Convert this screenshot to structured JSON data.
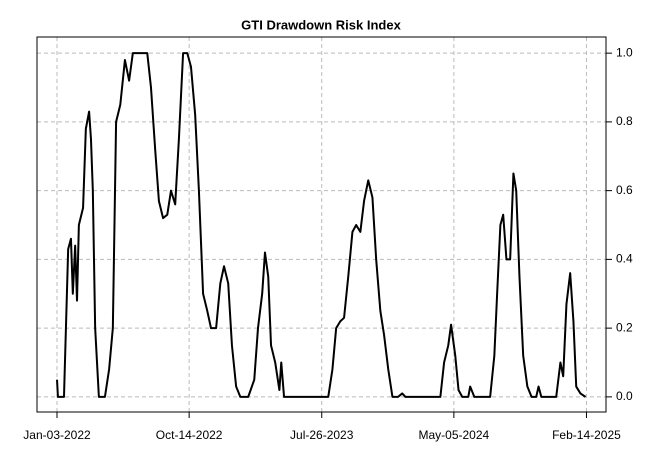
{
  "chart_data": {
    "type": "line",
    "title": "GTI Drawdown Risk Index",
    "color": "#000000",
    "grid": true,
    "y_axis_side": "right",
    "x": [
      "2022-01-03",
      "2022-01-05",
      "2022-01-18",
      "2022-01-27",
      "2022-02-02",
      "2022-02-06",
      "2022-02-11",
      "2022-02-15",
      "2022-02-19",
      "2022-02-28",
      "2022-03-06",
      "2022-03-13",
      "2022-03-17",
      "2022-03-21",
      "2022-03-26",
      "2022-04-03",
      "2022-04-16",
      "2022-04-25",
      "2022-05-03",
      "2022-05-10",
      "2022-05-19",
      "2022-05-29",
      "2022-06-07",
      "2022-06-15",
      "2022-07-16",
      "2022-07-24",
      "2022-08-02",
      "2022-08-10",
      "2022-08-19",
      "2022-08-28",
      "2022-09-05",
      "2022-09-14",
      "2022-09-22",
      "2022-10-01",
      "2022-10-10",
      "2022-10-18",
      "2022-10-27",
      "2022-11-04",
      "2022-11-13",
      "2022-11-22",
      "2022-11-30",
      "2022-12-11",
      "2022-12-20",
      "2022-12-28",
      "2023-01-06",
      "2023-01-14",
      "2023-01-23",
      "2023-02-01",
      "2023-02-18",
      "2023-03-03",
      "2023-03-11",
      "2023-03-20",
      "2023-03-26",
      "2023-04-02",
      "2023-04-08",
      "2023-04-17",
      "2023-04-26",
      "2023-04-30",
      "2023-05-06",
      "2023-05-17",
      "2023-08-09",
      "2023-08-18",
      "2023-08-26",
      "2023-09-04",
      "2023-09-12",
      "2023-09-21",
      "2023-09-30",
      "2023-10-08",
      "2023-10-17",
      "2023-10-25",
      "2023-11-03",
      "2023-11-12",
      "2023-11-20",
      "2023-11-29",
      "2023-12-07",
      "2023-12-16",
      "2023-12-25",
      "2024-01-06",
      "2024-01-15",
      "2024-01-22",
      "2024-04-06",
      "2024-04-14",
      "2024-04-23",
      "2024-04-29",
      "2024-05-08",
      "2024-05-15",
      "2024-05-23",
      "2024-06-05",
      "2024-06-09",
      "2024-06-18",
      "2024-07-22",
      "2024-07-31",
      "2024-08-06",
      "2024-08-13",
      "2024-08-19",
      "2024-08-26",
      "2024-09-03",
      "2024-09-10",
      "2024-09-16",
      "2024-09-23",
      "2024-10-01",
      "2024-10-10",
      "2024-10-19",
      "2024-10-29",
      "2024-11-03",
      "2024-11-09",
      "2024-12-11",
      "2024-12-20",
      "2024-12-26",
      "2025-01-02",
      "2025-01-10",
      "2025-01-17",
      "2025-01-23",
      "2025-02-01",
      "2025-02-12"
    ],
    "values": [
      0.05,
      0.0,
      0.0,
      0.43,
      0.46,
      0.3,
      0.44,
      0.28,
      0.5,
      0.55,
      0.78,
      0.83,
      0.75,
      0.6,
      0.2,
      0.0,
      0.0,
      0.08,
      0.2,
      0.8,
      0.85,
      0.98,
      0.92,
      1.0,
      1.0,
      0.9,
      0.72,
      0.57,
      0.52,
      0.53,
      0.6,
      0.56,
      0.75,
      1.0,
      1.0,
      0.96,
      0.82,
      0.6,
      0.3,
      0.25,
      0.2,
      0.2,
      0.33,
      0.38,
      0.33,
      0.15,
      0.03,
      0.0,
      0.0,
      0.05,
      0.2,
      0.3,
      0.42,
      0.35,
      0.15,
      0.1,
      0.02,
      0.1,
      0.0,
      0.0,
      0.0,
      0.08,
      0.2,
      0.22,
      0.23,
      0.35,
      0.48,
      0.5,
      0.48,
      0.57,
      0.63,
      0.58,
      0.4,
      0.25,
      0.18,
      0.08,
      0.0,
      0.0,
      0.01,
      0.0,
      0.0,
      0.1,
      0.15,
      0.21,
      0.12,
      0.02,
      0.0,
      0.0,
      0.03,
      0.0,
      0.0,
      0.12,
      0.3,
      0.5,
      0.53,
      0.4,
      0.4,
      0.65,
      0.6,
      0.35,
      0.12,
      0.03,
      0.0,
      0.0,
      0.03,
      0.0,
      0.0,
      0.1,
      0.06,
      0.27,
      0.36,
      0.22,
      0.03,
      0.01,
      0.0
    ],
    "xlim": [
      "2021-11-21",
      "2025-03-28"
    ],
    "xticks": [
      {
        "value": "2022-01-03",
        "label": "Jan-03-2022"
      },
      {
        "value": "2022-10-14",
        "label": "Oct-14-2022"
      },
      {
        "value": "2023-07-26",
        "label": "Jul-26-2023"
      },
      {
        "value": "2024-05-05",
        "label": "May-05-2024"
      },
      {
        "value": "2025-02-14",
        "label": "Feb-14-2025"
      }
    ],
    "ylim": [
      -0.044,
      1.047
    ],
    "yticks": [
      {
        "value": 0,
        "label": "0.0"
      },
      0.2,
      0.4,
      0.6,
      0.8,
      {
        "value": 1,
        "label": "1.0"
      }
    ]
  }
}
